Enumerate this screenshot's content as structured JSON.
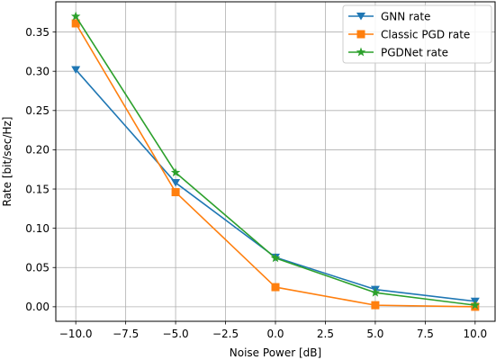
{
  "chart_data": {
    "type": "line",
    "title": "",
    "xlabel": "Noise Power [dB]",
    "ylabel": "Rate [bit/sec/Hz]",
    "xlim": [
      -11.0,
      11.0
    ],
    "ylim": [
      -0.0185,
      0.3885
    ],
    "xticks": [
      -10.0,
      -7.5,
      -5.0,
      -2.5,
      0.0,
      2.5,
      5.0,
      7.5,
      10.0
    ],
    "xtick_labels": [
      "−10.0",
      "−7.5",
      "−5.0",
      "−2.5",
      "0.0",
      "2.5",
      "5.0",
      "7.5",
      "10.0"
    ],
    "yticks": [
      0.0,
      0.05,
      0.1,
      0.15,
      0.2,
      0.25,
      0.3,
      0.35
    ],
    "ytick_labels": [
      "0.00",
      "0.05",
      "0.10",
      "0.15",
      "0.20",
      "0.25",
      "0.30",
      "0.35"
    ],
    "grid": true,
    "legend_position": "top-right",
    "x": [
      -10,
      -5,
      0,
      5,
      10
    ],
    "series": [
      {
        "name": "GNN rate",
        "color": "#1f77b4",
        "marker": "triangle-down",
        "values": [
          0.302,
          0.158,
          0.063,
          0.022,
          0.007
        ]
      },
      {
        "name": "Classic PGD rate",
        "color": "#ff7f0e",
        "marker": "square",
        "values": [
          0.361,
          0.146,
          0.025,
          0.002,
          0.0
        ]
      },
      {
        "name": "PGDNet rate",
        "color": "#2ca02c",
        "marker": "star",
        "values": [
          0.37,
          0.171,
          0.062,
          0.018,
          0.002
        ]
      }
    ]
  }
}
